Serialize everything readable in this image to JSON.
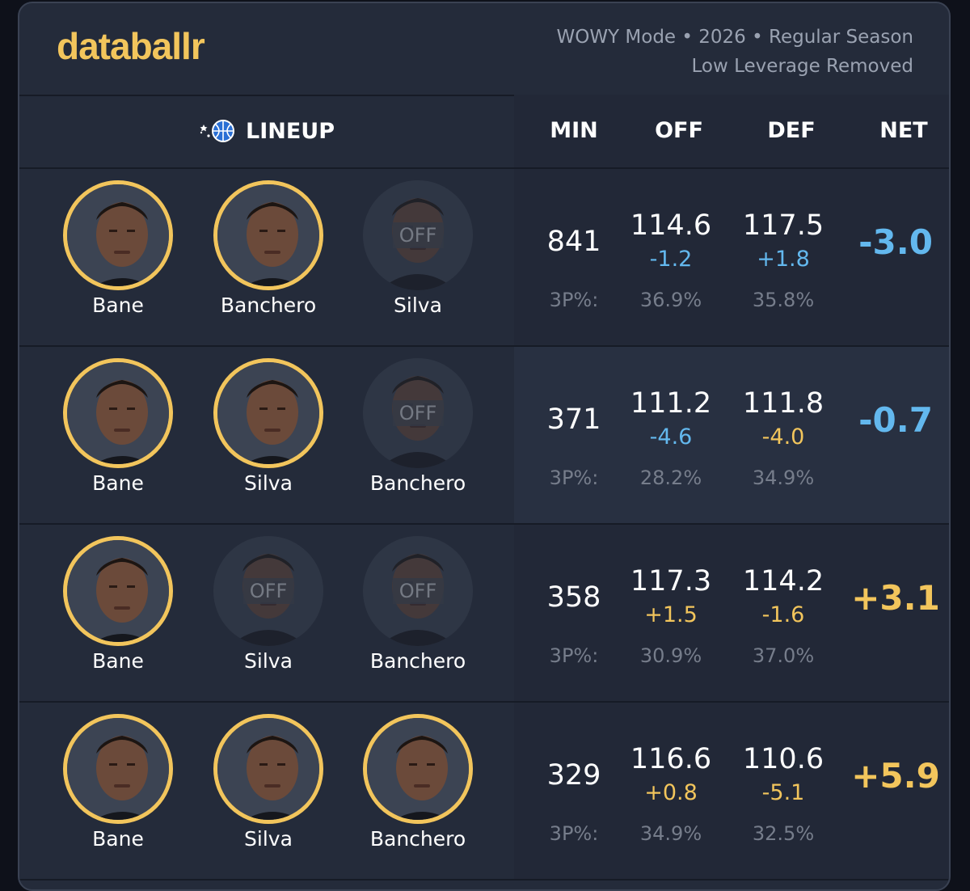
{
  "brand": {
    "logo": "databallr",
    "accent": "#f2c55c",
    "positive": "#f2c55c",
    "negative": "#63b8ee"
  },
  "meta": {
    "line1": "WOWY Mode • 2026 • Regular Season",
    "line2": "Low Leverage Removed"
  },
  "columns": {
    "lineup": "LINEUP",
    "lineup_icon": "magic-basketball-icon",
    "min": "MIN",
    "off": "OFF",
    "def": "DEF",
    "net": "NET"
  },
  "three_pt_label": "3P%:",
  "off_badge": "OFF",
  "rows": [
    {
      "players": [
        {
          "name": "Bane",
          "on": true
        },
        {
          "name": "Banchero",
          "on": true
        },
        {
          "name": "Silva",
          "on": false
        }
      ],
      "min": "841",
      "off": "114.6",
      "off_delta": "-1.2",
      "off_delta_color": "#63b8ee",
      "off_3p": "36.9%",
      "def": "117.5",
      "def_delta": "+1.8",
      "def_delta_color": "#63b8ee",
      "def_3p": "35.8%",
      "net": "-3.0",
      "net_color": "#63b8ee"
    },
    {
      "players": [
        {
          "name": "Bane",
          "on": true
        },
        {
          "name": "Silva",
          "on": true
        },
        {
          "name": "Banchero",
          "on": false
        }
      ],
      "min": "371",
      "off": "111.2",
      "off_delta": "-4.6",
      "off_delta_color": "#63b8ee",
      "off_3p": "28.2%",
      "def": "111.8",
      "def_delta": "-4.0",
      "def_delta_color": "#f2c55c",
      "def_3p": "34.9%",
      "net": "-0.7",
      "net_color": "#63b8ee"
    },
    {
      "players": [
        {
          "name": "Bane",
          "on": true
        },
        {
          "name": "Silva",
          "on": false
        },
        {
          "name": "Banchero",
          "on": false
        }
      ],
      "min": "358",
      "off": "117.3",
      "off_delta": "+1.5",
      "off_delta_color": "#f2c55c",
      "off_3p": "30.9%",
      "def": "114.2",
      "def_delta": "-1.6",
      "def_delta_color": "#f2c55c",
      "def_3p": "37.0%",
      "net": "+3.1",
      "net_color": "#f2c55c"
    },
    {
      "players": [
        {
          "name": "Bane",
          "on": true
        },
        {
          "name": "Silva",
          "on": true
        },
        {
          "name": "Banchero",
          "on": true
        }
      ],
      "min": "329",
      "off": "116.6",
      "off_delta": "+0.8",
      "off_delta_color": "#f2c55c",
      "off_3p": "34.9%",
      "def": "110.6",
      "def_delta": "-5.1",
      "def_delta_color": "#f2c55c",
      "def_3p": "32.5%",
      "net": "+5.9",
      "net_color": "#f2c55c"
    }
  ]
}
